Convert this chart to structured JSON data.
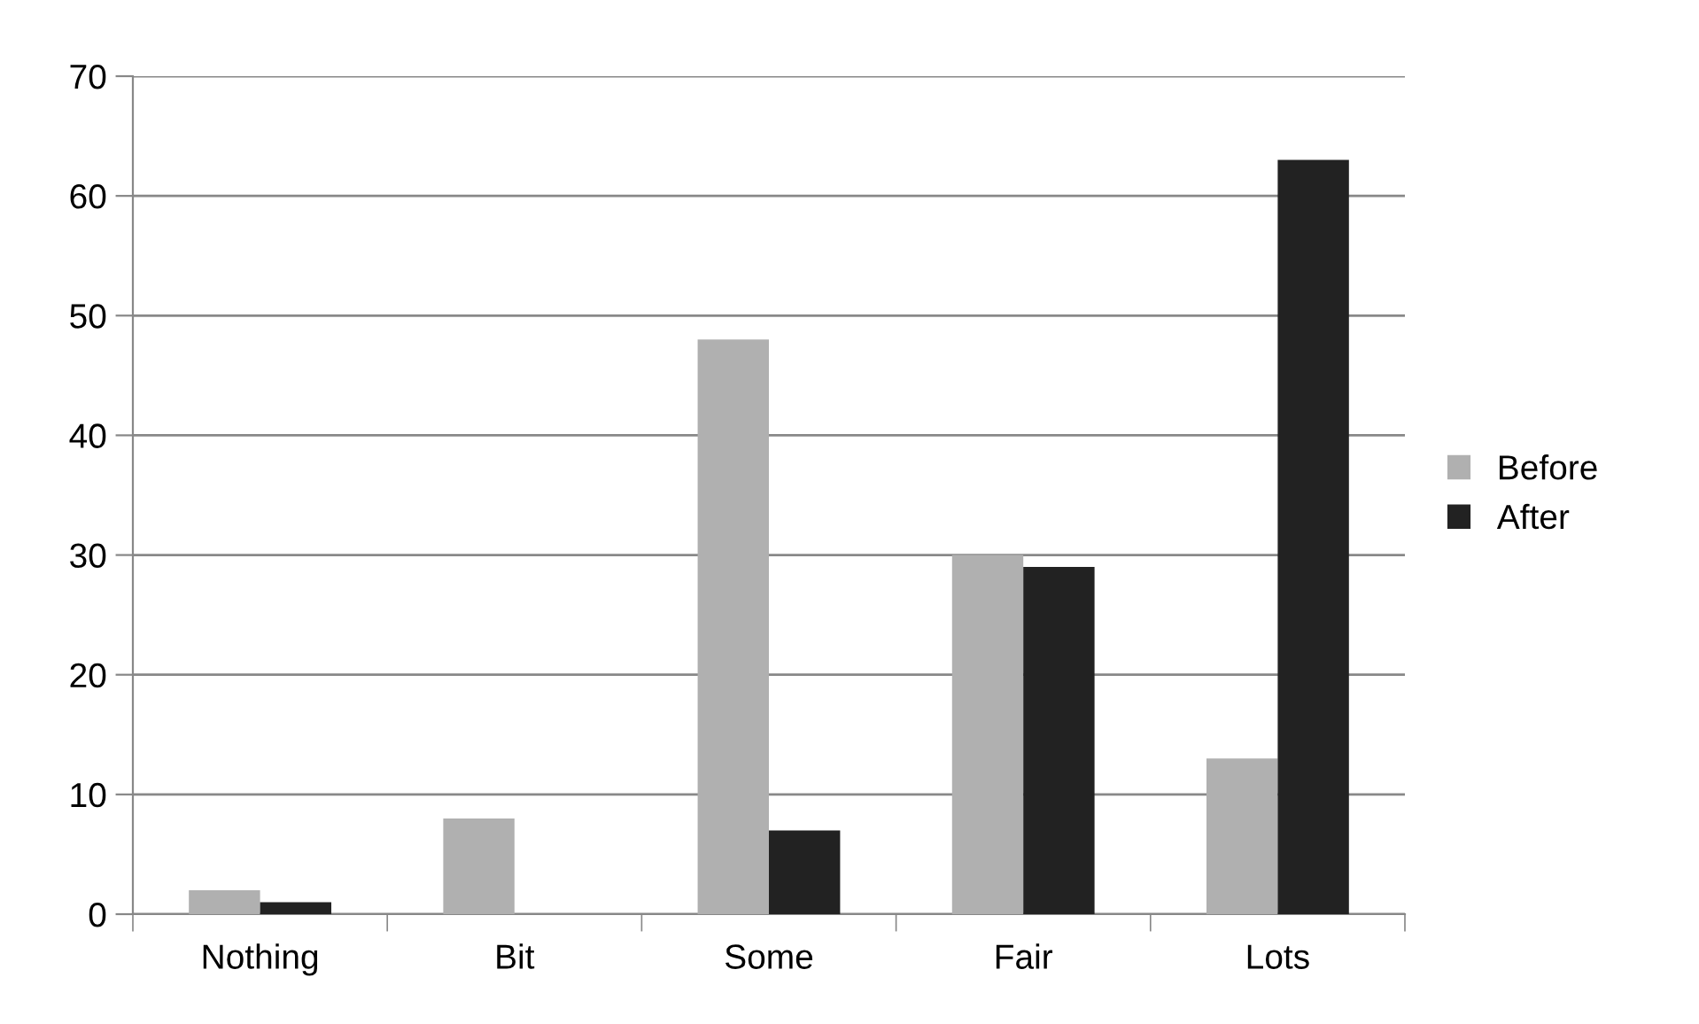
{
  "chart_data": {
    "type": "bar",
    "categories": [
      "Nothing",
      "Bit",
      "Some",
      "Fair",
      "Lots"
    ],
    "series": [
      {
        "name": "Before",
        "color": "#b0b0b0",
        "values": [
          2,
          8,
          48,
          30,
          13
        ]
      },
      {
        "name": "After",
        "color": "#222222",
        "values": [
          1,
          0,
          7,
          29,
          63
        ]
      }
    ],
    "ylim": [
      0,
      70
    ],
    "yticks": [
      0,
      10,
      20,
      30,
      40,
      50,
      60,
      70
    ],
    "grid": "y",
    "legend": "right"
  }
}
